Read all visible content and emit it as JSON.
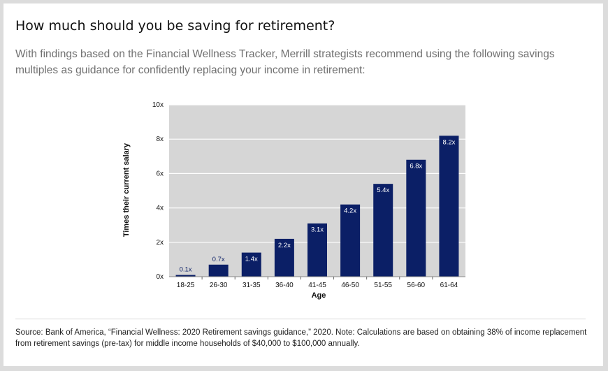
{
  "header": {
    "title": "How much should you be saving for retirement?",
    "subtitle": "With findings based on the Financial Wellness Tracker, Merrill strategists recommend using the following savings multiples as guidance for confidently replacing your income in retirement:"
  },
  "footer": {
    "note": "Source: Bank of America, “Financial Wellness: 2020 Retirement savings guidance,” 2020. Note: Calculations are based on obtaining 38% of income replacement from retirement savings (pre-tax) for middle income households of $40,000 to $100,000 annually."
  },
  "chart_data": {
    "type": "bar",
    "categories": [
      "18-25",
      "26-30",
      "31-35",
      "36-40",
      "41-45",
      "46-50",
      "51-55",
      "56-60",
      "61-64"
    ],
    "values": [
      0.1,
      0.7,
      1.4,
      2.2,
      3.1,
      4.2,
      5.4,
      6.8,
      8.2
    ],
    "data_labels": [
      "0.1x",
      "0.7x",
      "1.4x",
      "2.2x",
      "3.1x",
      "4.2x",
      "5.4x",
      "6.8x",
      "8.2x"
    ],
    "yticks": [
      0,
      2,
      4,
      6,
      8,
      10
    ],
    "ytick_labels": [
      "0x",
      "2x",
      "4x",
      "6x",
      "8x",
      "10x"
    ],
    "ylim": [
      0,
      10
    ],
    "xlabel": "Age",
    "ylabel": "Times their current salary",
    "grid": true,
    "colors": {
      "bar": "#0b1f66",
      "plot_bg": "#d6d6d6",
      "grid": "#ffffff"
    }
  }
}
